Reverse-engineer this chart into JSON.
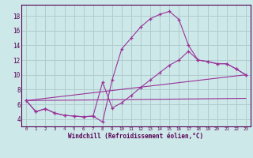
{
  "xlabel": "Windchill (Refroidissement éolien,°C)",
  "background_color": "#cde8e8",
  "grid_color": "#b0cccc",
  "line_color": "#993399",
  "xlim": [
    -0.5,
    23.5
  ],
  "ylim": [
    3.0,
    19.5
  ],
  "xticks": [
    0,
    1,
    2,
    3,
    4,
    5,
    6,
    7,
    8,
    9,
    10,
    11,
    12,
    13,
    14,
    15,
    16,
    17,
    18,
    19,
    20,
    21,
    22,
    23
  ],
  "yticks": [
    4,
    6,
    8,
    10,
    12,
    14,
    16,
    18
  ],
  "curve1_x": [
    0,
    1,
    2,
    3,
    4,
    5,
    6,
    7,
    8,
    9,
    10,
    11,
    12,
    13,
    14,
    15,
    16,
    17,
    18,
    19,
    20,
    21,
    22,
    23
  ],
  "curve1_y": [
    6.5,
    5.0,
    5.4,
    4.8,
    4.5,
    4.4,
    4.3,
    4.4,
    3.6,
    9.3,
    13.5,
    15.0,
    16.5,
    17.6,
    18.2,
    18.6,
    17.5,
    14.0,
    12.0,
    11.8,
    11.5,
    11.5,
    10.8,
    10.0
  ],
  "curve2_x": [
    0,
    1,
    2,
    3,
    4,
    5,
    6,
    7,
    8,
    9,
    10,
    11,
    12,
    13,
    14,
    15,
    16,
    17,
    18,
    19,
    20,
    21,
    22,
    23
  ],
  "curve2_y": [
    6.5,
    5.0,
    5.4,
    4.8,
    4.5,
    4.4,
    4.3,
    4.4,
    9.0,
    5.5,
    6.2,
    7.2,
    8.3,
    9.3,
    10.3,
    11.3,
    12.0,
    13.2,
    12.0,
    11.8,
    11.5,
    11.5,
    10.8,
    10.0
  ],
  "curve3_x": [
    0,
    23
  ],
  "curve3_y": [
    6.5,
    10.0
  ],
  "curve4_x": [
    0,
    23
  ],
  "curve4_y": [
    6.5,
    6.8
  ]
}
